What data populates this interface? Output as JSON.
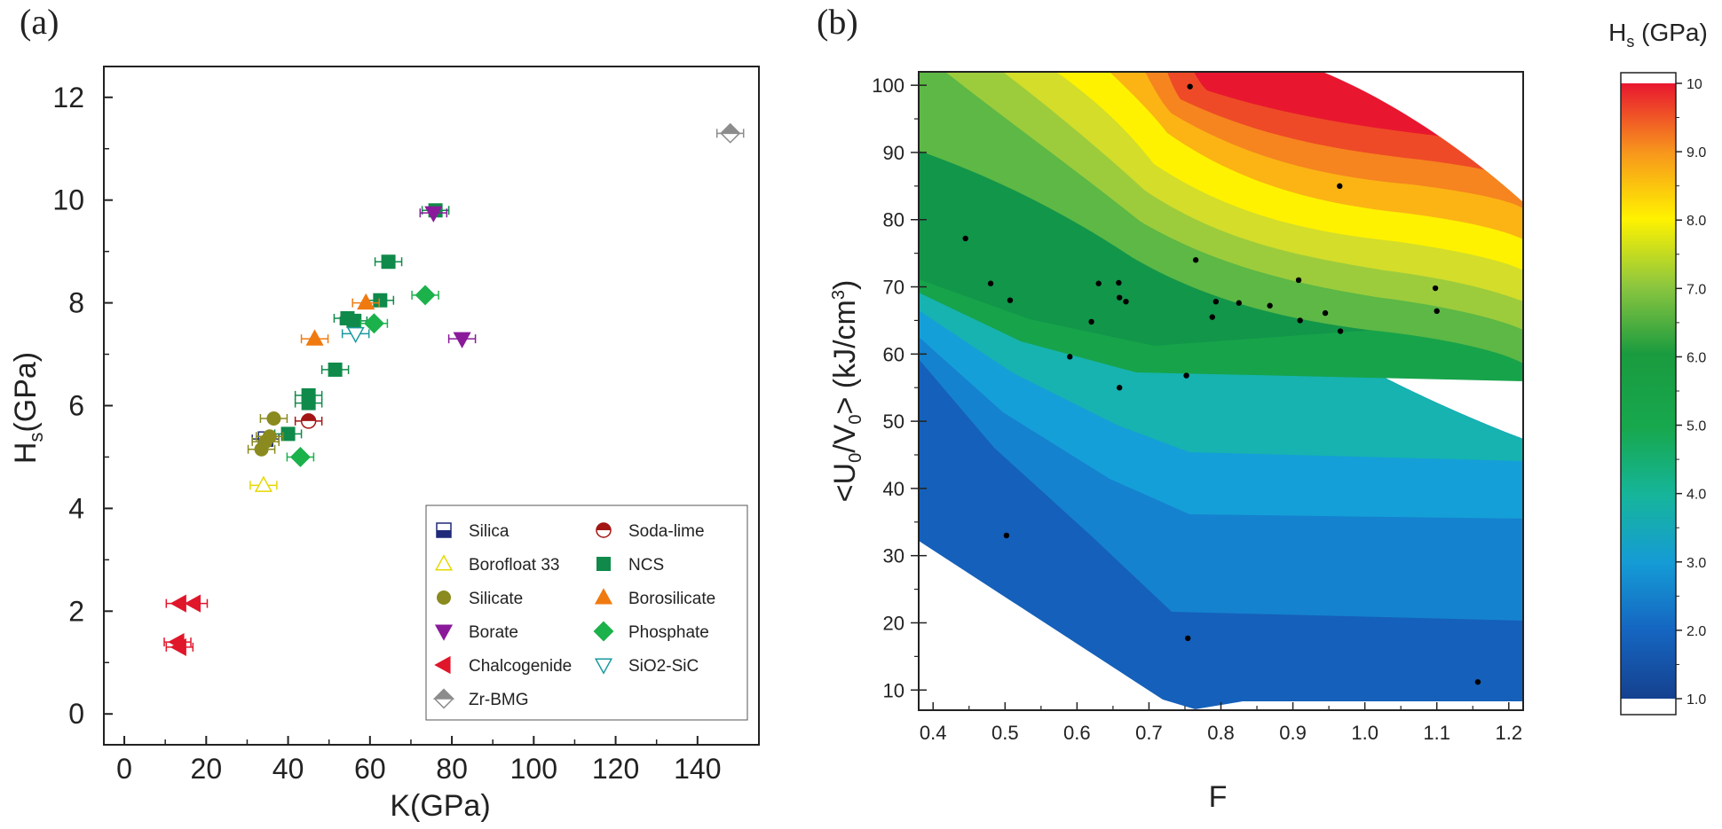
{
  "panel_a": {
    "letter": "(a)",
    "chart_data": {
      "type": "scatter",
      "xlabel": "K(GPa)",
      "ylabel_main": "H",
      "ylabel_sub": "s",
      "ylabel_rest": "(GPa)",
      "xlim": [
        -5,
        155
      ],
      "ylim": [
        -0.6,
        12.6
      ],
      "xticks": [
        0,
        20,
        40,
        60,
        80,
        100,
        120,
        140
      ],
      "yticks": [
        0,
        2,
        4,
        6,
        8,
        10,
        12
      ],
      "legend_position": "bottom-right",
      "series": [
        {
          "name": "Silica",
          "marker": "square-half",
          "color": "#1f2a7a",
          "x": [
            34.5
          ],
          "y": [
            5.35
          ]
        },
        {
          "name": "Soda-lime",
          "marker": "circle-half",
          "color": "#a31515",
          "x": [
            45
          ],
          "y": [
            5.7
          ]
        },
        {
          "name": "Borofloat 33",
          "marker": "triangle-up-open",
          "color": "#e6d800",
          "x": [
            34
          ],
          "y": [
            4.45
          ]
        },
        {
          "name": "NCS",
          "marker": "square",
          "color": "#0f8a4a",
          "x": [
            40,
            45,
            45,
            51.5,
            54.5,
            56,
            62.5,
            64.5,
            76
          ],
          "y": [
            5.45,
            6.05,
            6.2,
            6.7,
            7.7,
            7.65,
            8.05,
            8.8,
            9.8
          ]
        },
        {
          "name": "Silicate",
          "marker": "circle",
          "color": "#8a8a1f",
          "x": [
            33.5,
            34.5,
            35.5,
            36.5
          ],
          "y": [
            5.15,
            5.3,
            5.4,
            5.75
          ]
        },
        {
          "name": "Borosilicate",
          "marker": "triangle-up",
          "color": "#f07a10",
          "x": [
            46.5,
            59
          ],
          "y": [
            7.3,
            8.0
          ]
        },
        {
          "name": "Borate",
          "marker": "triangle-down",
          "color": "#8a1a9a",
          "x": [
            75.5,
            82.5
          ],
          "y": [
            9.75,
            7.3
          ]
        },
        {
          "name": "Phosphate",
          "marker": "diamond",
          "color": "#1bb14b",
          "x": [
            43,
            61,
            73.5
          ],
          "y": [
            5.0,
            7.6,
            8.15
          ]
        },
        {
          "name": "Chalcogenide",
          "marker": "triangle-left",
          "color": "#e0162b",
          "x": [
            13.5,
            17,
            13,
            13.5
          ],
          "y": [
            2.15,
            2.15,
            1.4,
            1.3
          ]
        },
        {
          "name": "SiO2-SiC",
          "marker": "triangle-down-open",
          "color": "#1a9aa0",
          "x": [
            56.5
          ],
          "y": [
            7.4
          ]
        },
        {
          "name": "Zr-BMG",
          "marker": "diamond-half",
          "color": "#8c8c8c",
          "x": [
            148
          ],
          "y": [
            11.3
          ]
        }
      ]
    }
  },
  "panel_b": {
    "letter": "(b)",
    "chart_data": {
      "type": "heatmap",
      "xlabel": "F",
      "ylabel_parts": [
        "<U",
        "0",
        "/V",
        "0",
        "> (kJ/cm",
        "3",
        ")"
      ],
      "xlim": [
        0.38,
        1.22
      ],
      "ylim": [
        7,
        102
      ],
      "xticks": [
        0.4,
        0.5,
        0.6,
        0.7,
        0.8,
        0.9,
        1.0,
        1.1,
        1.2
      ],
      "xtick_labels": [
        "0.4",
        "0.5",
        "0.6",
        "0.7",
        "0.8",
        "0.9",
        "1.0",
        "1.1",
        "1.2"
      ],
      "yticks": [
        10,
        20,
        30,
        40,
        50,
        60,
        70,
        80,
        90,
        100
      ],
      "points": [
        {
          "x": 0.445,
          "y": 77.2
        },
        {
          "x": 0.48,
          "y": 70.5
        },
        {
          "x": 0.507,
          "y": 68.0
        },
        {
          "x": 0.59,
          "y": 59.6
        },
        {
          "x": 0.62,
          "y": 64.8
        },
        {
          "x": 0.63,
          "y": 70.5
        },
        {
          "x": 0.658,
          "y": 70.6
        },
        {
          "x": 0.659,
          "y": 68.4
        },
        {
          "x": 0.668,
          "y": 67.8
        },
        {
          "x": 0.659,
          "y": 55.0
        },
        {
          "x": 0.752,
          "y": 56.8
        },
        {
          "x": 0.757,
          "y": 99.8
        },
        {
          "x": 0.765,
          "y": 74.0
        },
        {
          "x": 0.788,
          "y": 65.5
        },
        {
          "x": 0.793,
          "y": 67.8
        },
        {
          "x": 0.825,
          "y": 67.6
        },
        {
          "x": 0.868,
          "y": 67.2
        },
        {
          "x": 0.908,
          "y": 71.0
        },
        {
          "x": 0.91,
          "y": 65.0
        },
        {
          "x": 0.945,
          "y": 66.1
        },
        {
          "x": 0.965,
          "y": 85.0
        },
        {
          "x": 0.966,
          "y": 63.4
        },
        {
          "x": 1.098,
          "y": 69.8
        },
        {
          "x": 1.1,
          "y": 66.4
        },
        {
          "x": 0.502,
          "y": 33.0
        },
        {
          "x": 0.754,
          "y": 17.7
        },
        {
          "x": 1.157,
          "y": 11.2
        }
      ]
    }
  },
  "colorbar": {
    "title_main": "H",
    "title_sub": "s",
    "title_rest": " (GPa)",
    "range": [
      1.0,
      10
    ],
    "ticks": [
      1.0,
      2.0,
      3.0,
      4.0,
      5.0,
      6.0,
      7.0,
      8.0,
      9.0,
      10
    ],
    "tick_labels": [
      "1.0",
      "2.0",
      "3.0",
      "4.0",
      "5.0",
      "6.0",
      "7.0",
      "8.0",
      "9.0",
      "10"
    ]
  }
}
